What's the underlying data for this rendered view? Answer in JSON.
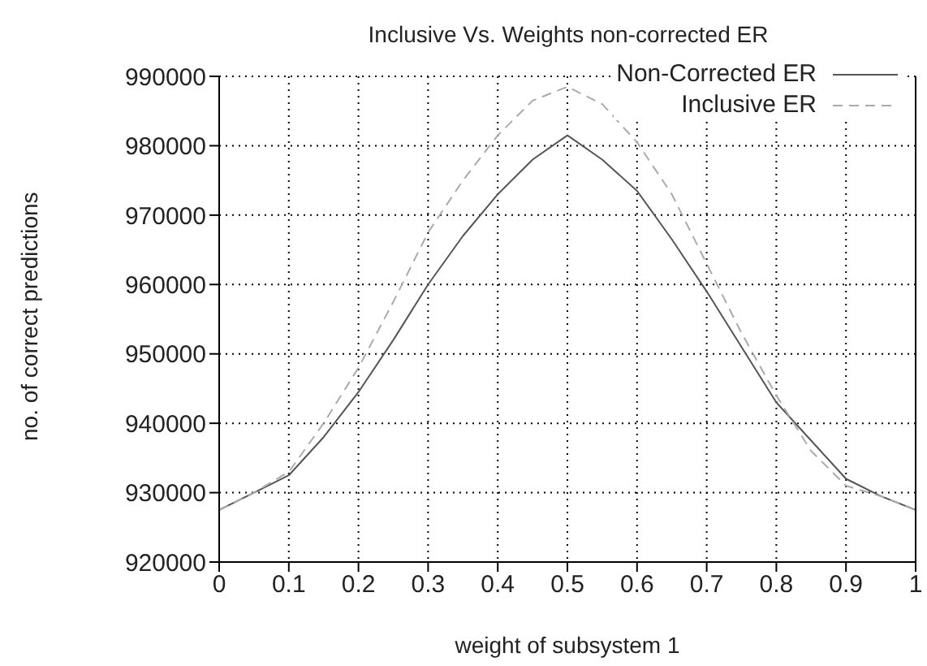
{
  "chart_data": {
    "type": "line",
    "title": "Inclusive Vs. Weights non-corrected ER",
    "xlabel": "weight of subsystem 1",
    "ylabel": "no. of correct predictions",
    "x": [
      0,
      0.05,
      0.1,
      0.15,
      0.2,
      0.25,
      0.3,
      0.35,
      0.4,
      0.45,
      0.5,
      0.55,
      0.6,
      0.65,
      0.7,
      0.75,
      0.8,
      0.85,
      0.9,
      0.95,
      1
    ],
    "series": [
      {
        "name": "Non-Corrected ER",
        "color": "#555555",
        "line_style": "solid",
        "values": [
          927500,
          930000,
          932500,
          938000,
          944500,
          952000,
          960000,
          967000,
          973000,
          978000,
          981500,
          978000,
          973500,
          966500,
          959000,
          951000,
          943000,
          937500,
          932000,
          929500,
          927500
        ]
      },
      {
        "name": "Inclusive ER",
        "color": "#aaaaaa",
        "line_style": "dashed",
        "values": [
          927500,
          930000,
          933000,
          940000,
          948000,
          957500,
          967500,
          975000,
          981500,
          986500,
          988500,
          986000,
          980500,
          973000,
          963000,
          953000,
          944000,
          936000,
          931000,
          929500,
          927500
        ]
      }
    ],
    "xlim": [
      0,
      1
    ],
    "xticks": [
      0,
      0.1,
      0.2,
      0.3,
      0.4,
      0.5,
      0.6,
      0.7,
      0.8,
      0.9,
      1
    ],
    "ylim": [
      920000,
      990000
    ],
    "yticks": [
      920000,
      930000,
      940000,
      950000,
      960000,
      970000,
      980000,
      990000
    ],
    "grid": true,
    "legend": "top right",
    "marker": "none"
  }
}
